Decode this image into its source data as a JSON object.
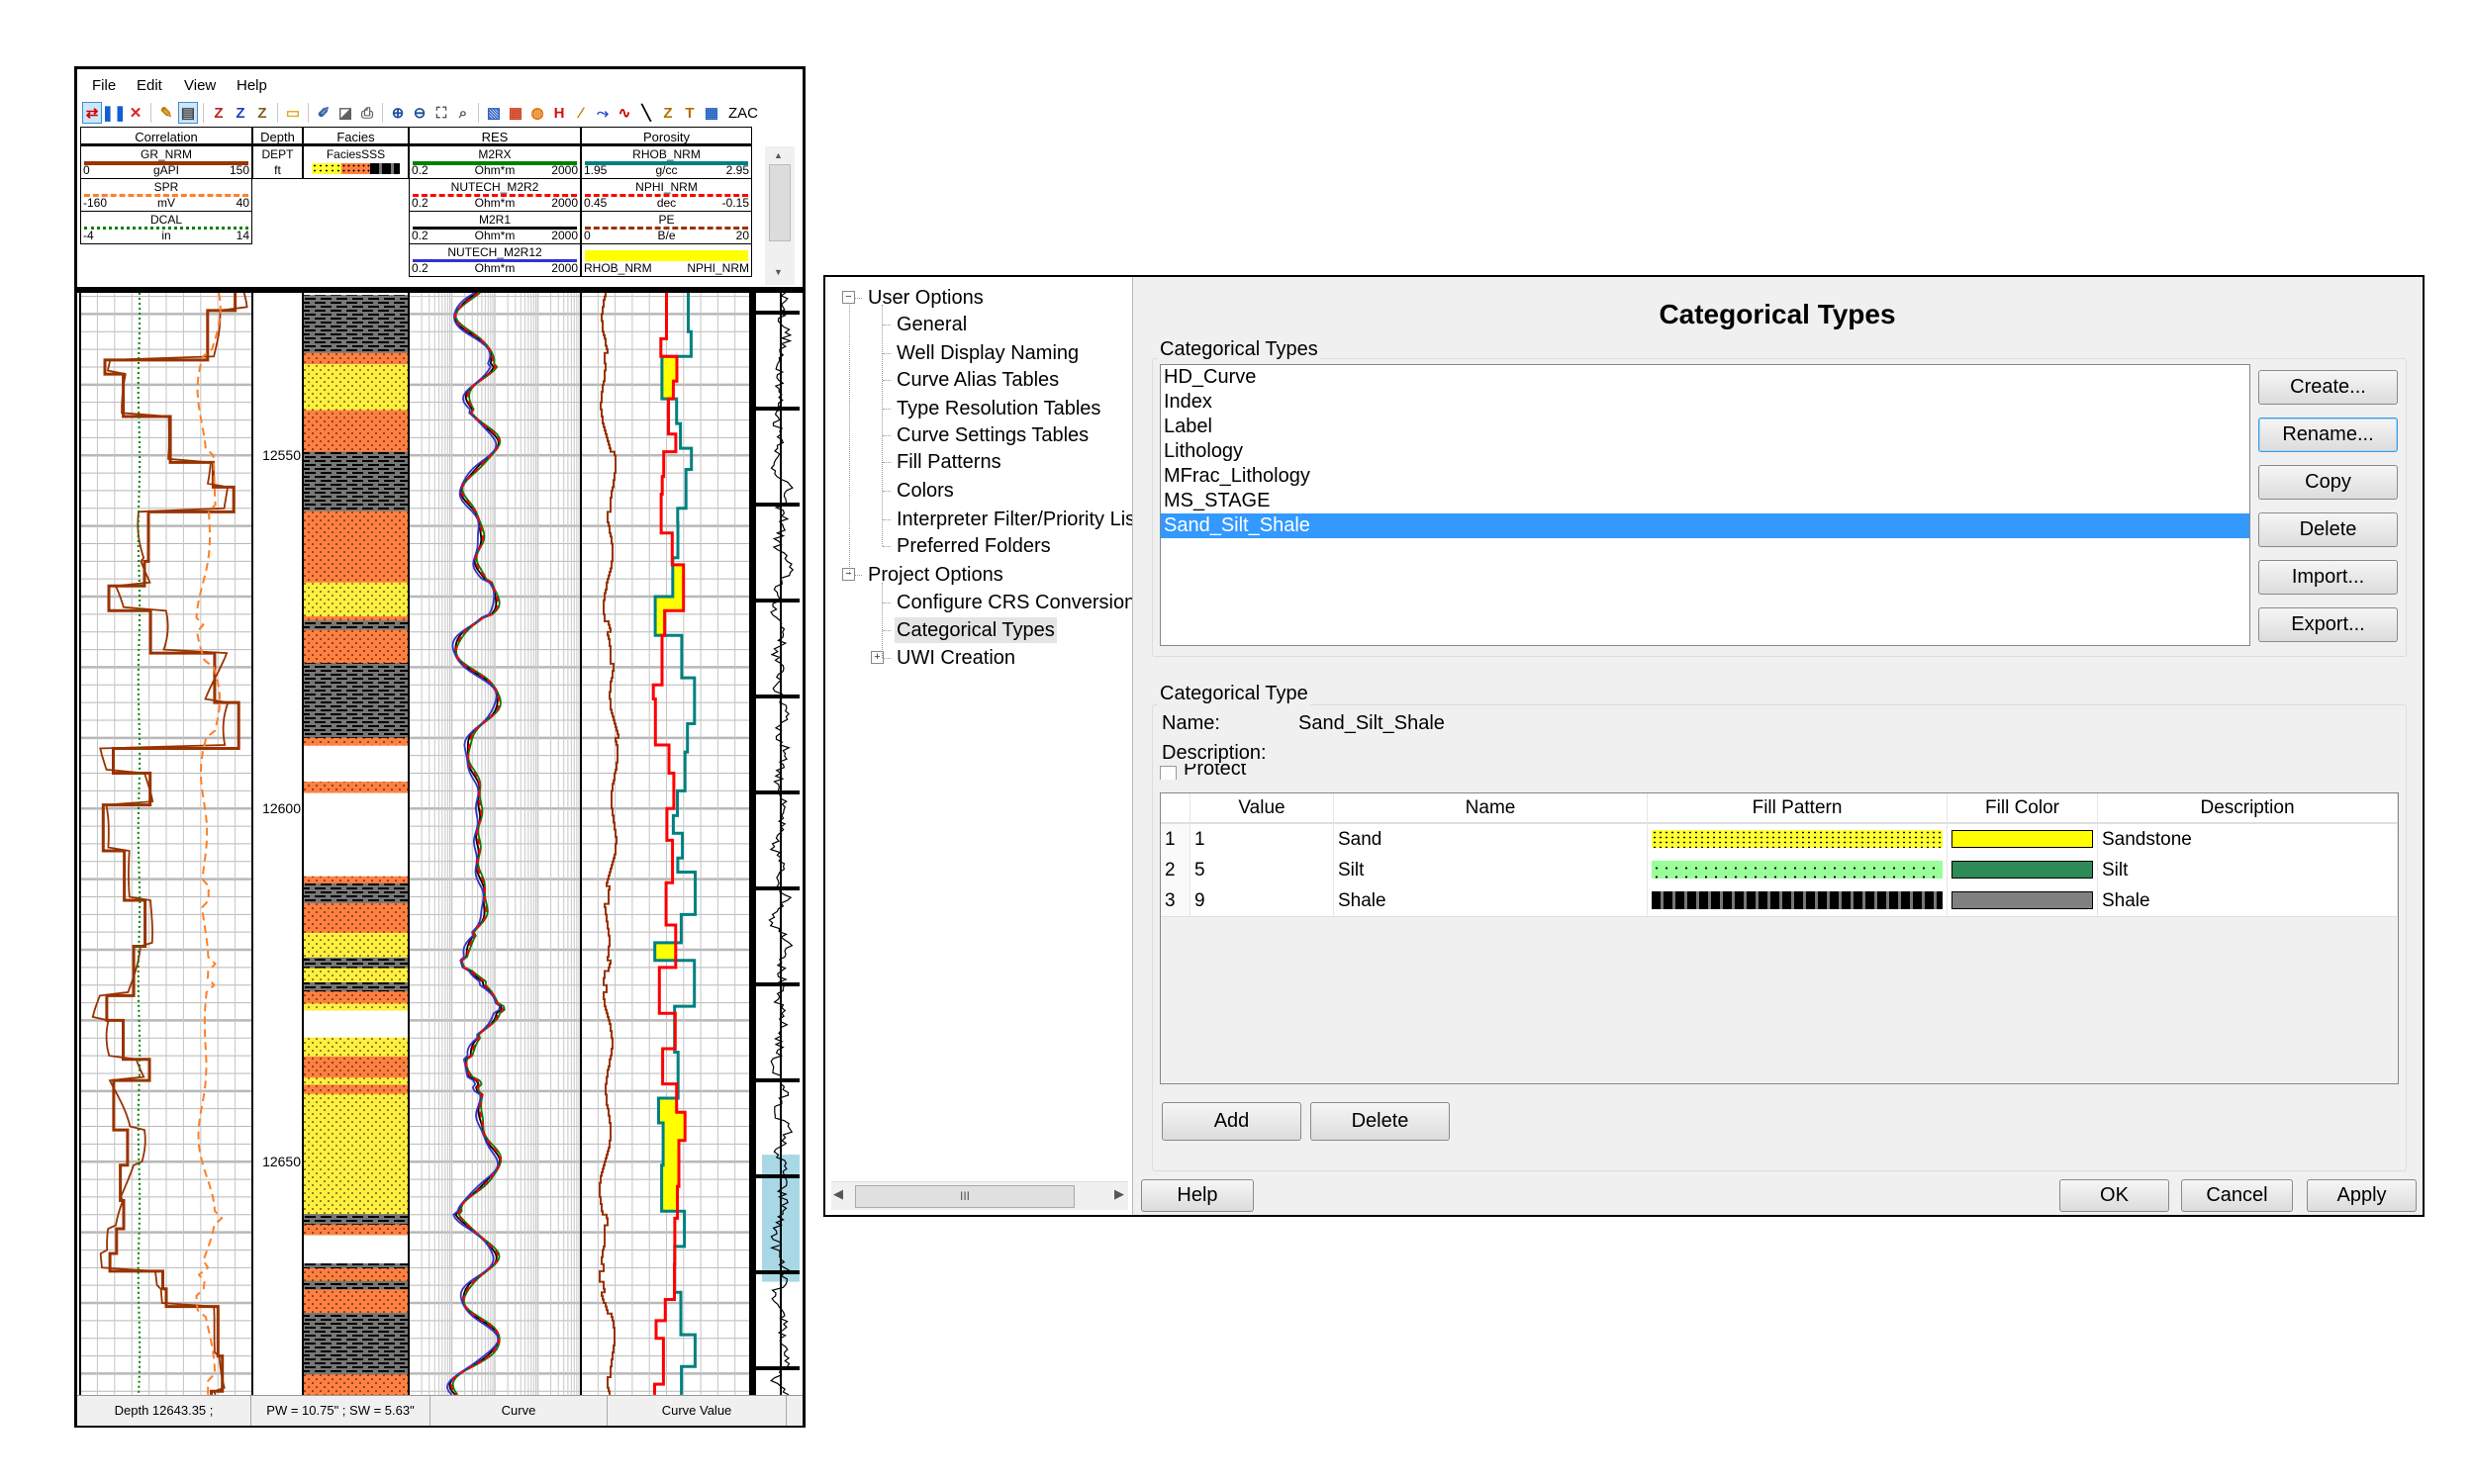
{
  "log_window": {
    "menu": [
      "File",
      "Edit",
      "View",
      "Help"
    ],
    "toolbar": {
      "icons": [
        {
          "name": "correlate-icon",
          "glyph": "⇄",
          "color": "#d00000",
          "active": true
        },
        {
          "name": "pause-icon",
          "glyph": "❚❚",
          "color": "#1060d0"
        },
        {
          "name": "close-icon",
          "glyph": "✕",
          "color": "#e02020"
        },
        {
          "sep": true
        },
        {
          "name": "pencil-icon",
          "glyph": "✎",
          "color": "#c08000"
        },
        {
          "name": "save-icon",
          "glyph": "▤",
          "color": "#444",
          "active": true
        },
        {
          "sep": true
        },
        {
          "name": "zone-top-icon",
          "glyph": "Z",
          "color": "#c02020"
        },
        {
          "name": "zone-insert-icon",
          "glyph": "Z",
          "color": "#2040c0"
        },
        {
          "name": "zone-delete-icon",
          "glyph": "Z",
          "color": "#806020"
        },
        {
          "sep": true
        },
        {
          "name": "folder-icon",
          "glyph": "▭",
          "color": "#e0b020"
        },
        {
          "sep": true
        },
        {
          "name": "edit-template-icon",
          "glyph": "✐",
          "color": "#3060a0"
        },
        {
          "name": "print-preview-icon",
          "glyph": "◪",
          "color": "#606060"
        },
        {
          "name": "print-icon",
          "glyph": "⎙",
          "color": "#606060"
        },
        {
          "sep": true
        },
        {
          "name": "zoom-in-icon",
          "glyph": "⊕",
          "color": "#2050a0"
        },
        {
          "name": "zoom-out-icon",
          "glyph": "⊖",
          "color": "#2050a0"
        },
        {
          "name": "zoom-fit-icon",
          "glyph": "⛶",
          "color": "#505050"
        },
        {
          "name": "zoom-window-icon",
          "glyph": "⌕",
          "color": "#505050"
        },
        {
          "sep": true
        },
        {
          "name": "properties-icon",
          "glyph": "▧",
          "color": "#3060c0"
        },
        {
          "name": "colormap-icon",
          "glyph": "▦",
          "color": "#d04020"
        },
        {
          "name": "cylinder-icon",
          "glyph": "◍",
          "color": "#e07000"
        },
        {
          "name": "marker-icon",
          "glyph": "H",
          "color": "#d01010"
        },
        {
          "name": "draw-line-icon",
          "glyph": "∕",
          "color": "#b08000"
        },
        {
          "name": "curve-edit-icon",
          "glyph": "⤳",
          "color": "#2040d0"
        },
        {
          "name": "curve-icon",
          "glyph": "∿",
          "color": "#c00000"
        },
        {
          "name": "diagonal-line-icon",
          "glyph": "╲",
          "color": "#000"
        },
        {
          "name": "z-icon",
          "glyph": "Z",
          "color": "#b07000"
        },
        {
          "name": "text-icon",
          "glyph": "T",
          "color": "#b07000"
        },
        {
          "name": "grid-color-icon",
          "glyph": "▦",
          "color": "#2060c0"
        }
      ],
      "zac_label": "ZAC"
    },
    "tracks": [
      {
        "title": "Correlation",
        "curves": [
          {
            "name": "GR_NRM",
            "min": "0",
            "unit": "gAPI",
            "max": "150",
            "color": "#993300",
            "style": "solid"
          },
          {
            "name": "SPR",
            "min": "-160",
            "unit": "mV",
            "max": "40",
            "color": "#ff7f27",
            "style": "dashed"
          },
          {
            "name": "DCAL",
            "min": "-4",
            "unit": "in",
            "max": "14",
            "color": "#008000",
            "style": "dotted"
          }
        ]
      },
      {
        "title": "Depth",
        "curves": [
          {
            "name": "DEPT",
            "unit": "ft"
          }
        ]
      },
      {
        "title": "Facies",
        "curves": [
          {
            "name": "FaciesSSS"
          }
        ]
      },
      {
        "title": "RES",
        "curves": [
          {
            "name": "M2RX",
            "min": "0.2",
            "unit": "Ohm*m",
            "max": "2000",
            "color": "#008000",
            "style": "solid"
          },
          {
            "name": "NUTECH_M2R2",
            "min": "0.2",
            "unit": "Ohm*m",
            "max": "2000",
            "color": "#ff0000",
            "style": "dashed"
          },
          {
            "name": "M2R1",
            "min": "0.2",
            "unit": "Ohm*m",
            "max": "2000",
            "color": "#000000",
            "style": "solid"
          },
          {
            "name": "NUTECH_M2R12",
            "min": "0.2",
            "unit": "Ohm*m",
            "max": "2000",
            "color": "#3333cc",
            "style": "solid"
          }
        ]
      },
      {
        "title": "Porosity",
        "curves": [
          {
            "name": "RHOB_NRM",
            "min": "1.95",
            "unit": "g/cc",
            "max": "2.95",
            "color": "#008080",
            "style": "solid"
          },
          {
            "name": "NPHI_NRM",
            "min": "0.45",
            "unit": "dec",
            "max": "-0.15",
            "color": "#ff0000",
            "style": "dashed"
          },
          {
            "name": "PE",
            "min": "0",
            "unit": "B/e",
            "max": "20",
            "color": "#993300",
            "style": "dashed"
          },
          {
            "name": "fill",
            "left": "RHOB_NRM",
            "right": "NPHI_NRM",
            "color": "#ffff00"
          }
        ]
      }
    ],
    "depth_range": [
      12527,
      12683
    ],
    "depth_labels": [
      "12550",
      "12600",
      "12650"
    ],
    "facies_intervals": [
      [
        12527.3,
        12535.5,
        9
      ],
      [
        12535.5,
        12537.1,
        5
      ],
      [
        12537.1,
        12543.6,
        1
      ],
      [
        12543.6,
        12549.5,
        5
      ],
      [
        12549.5,
        12557.9,
        9
      ],
      [
        12557.9,
        12568.0,
        5
      ],
      [
        12568.0,
        12572.8,
        1
      ],
      [
        12572.8,
        12573.4,
        5
      ],
      [
        12573.4,
        12574.7,
        9
      ],
      [
        12574.7,
        12579.4,
        5
      ],
      [
        12579.4,
        12590.0,
        9
      ],
      [
        12590.0,
        12591.1,
        5
      ],
      [
        12591.1,
        12596.2,
        0
      ],
      [
        12596.2,
        12597.8,
        5
      ],
      [
        12597.8,
        12609.6,
        0
      ],
      [
        12609.6,
        12610.6,
        5
      ],
      [
        12610.6,
        12613.4,
        9
      ],
      [
        12613.4,
        12617.6,
        5
      ],
      [
        12617.6,
        12621.1,
        1
      ],
      [
        12621.1,
        12622.6,
        9
      ],
      [
        12622.6,
        12624.6,
        1
      ],
      [
        12624.6,
        12625.9,
        9
      ],
      [
        12625.9,
        12627.6,
        5
      ],
      [
        12627.6,
        12628.6,
        1
      ],
      [
        12628.6,
        12632.4,
        0
      ],
      [
        12632.4,
        12635.1,
        1
      ],
      [
        12635.1,
        12638.1,
        5
      ],
      [
        12638.1,
        12639.1,
        1
      ],
      [
        12639.1,
        12640.4,
        5
      ],
      [
        12640.4,
        12657.4,
        1
      ],
      [
        12657.4,
        12658.9,
        9
      ],
      [
        12658.9,
        12660.4,
        5
      ],
      [
        12660.4,
        12664.4,
        0
      ],
      [
        12664.4,
        12665.1,
        9
      ],
      [
        12665.1,
        12666.9,
        5
      ],
      [
        12666.9,
        12668.1,
        9
      ],
      [
        12668.1,
        12671.4,
        5
      ],
      [
        12671.4,
        12680.1,
        9
      ],
      [
        12680.1,
        12683.4,
        5
      ]
    ],
    "status": {
      "depth": "Depth 12643.35 ;",
      "pw_sw": "PW = 10.75\" ;  SW = 5.63\"",
      "curve": "Curve",
      "curve_value": "Curve Value"
    }
  },
  "dialog": {
    "tree": [
      {
        "label": "User Options",
        "level": 0,
        "expander": "−"
      },
      {
        "label": "General",
        "level": 1
      },
      {
        "label": "Well Display Naming",
        "level": 1
      },
      {
        "label": "Curve Alias Tables",
        "level": 1
      },
      {
        "label": "Type Resolution Tables",
        "level": 1
      },
      {
        "label": "Curve Settings Tables",
        "level": 1
      },
      {
        "label": "Fill Patterns",
        "level": 1
      },
      {
        "label": "Colors",
        "level": 1
      },
      {
        "label": "Interpreter Filter/Priority List",
        "level": 1
      },
      {
        "label": "Preferred Folders",
        "level": 1
      },
      {
        "label": "Project Options",
        "level": 0,
        "expander": "−"
      },
      {
        "label": "Configure CRS Conversion",
        "level": 1
      },
      {
        "label": "Categorical Types",
        "level": 1,
        "selected": true
      },
      {
        "label": "UWI Creation",
        "level": 1,
        "expander": "+"
      }
    ],
    "title": "Categorical Types",
    "types_group_label": "Categorical Types",
    "types": [
      "HD_Curve",
      "Index",
      "Label",
      "Lithology",
      "MFrac_Lithology",
      "MS_STAGE",
      "Sand_Silt_Shale"
    ],
    "selected_type": "Sand_Silt_Shale",
    "side_buttons": [
      "Create...",
      "Rename...",
      "Copy",
      "Delete",
      "Import...",
      "Export..."
    ],
    "type_group_label": "Categorical Type",
    "name_label": "Name:",
    "name_value": "Sand_Silt_Shale",
    "description_label": "Description:",
    "protect_label": "Protect",
    "protect_checked": false,
    "grid": {
      "columns": [
        "Value",
        "Name",
        "Fill Pattern",
        "Fill Color",
        "Description"
      ],
      "rows": [
        {
          "index": "1",
          "value": "1",
          "name": "Sand",
          "pattern": "sand-dots",
          "color": "#ffff00",
          "description": "Sandstone"
        },
        {
          "index": "2",
          "value": "5",
          "name": "Silt",
          "pattern": "silt-dots",
          "color": "#2e8b57",
          "description": "Silt"
        },
        {
          "index": "3",
          "value": "9",
          "name": "Shale",
          "pattern": "shale-dashes",
          "color": "#808080",
          "description": "Shale"
        }
      ]
    },
    "add_label": "Add",
    "delete_label": "Delete",
    "help_label": "Help",
    "ok_label": "OK",
    "cancel_label": "Cancel",
    "apply_label": "Apply",
    "scroll_thumb": "III"
  }
}
